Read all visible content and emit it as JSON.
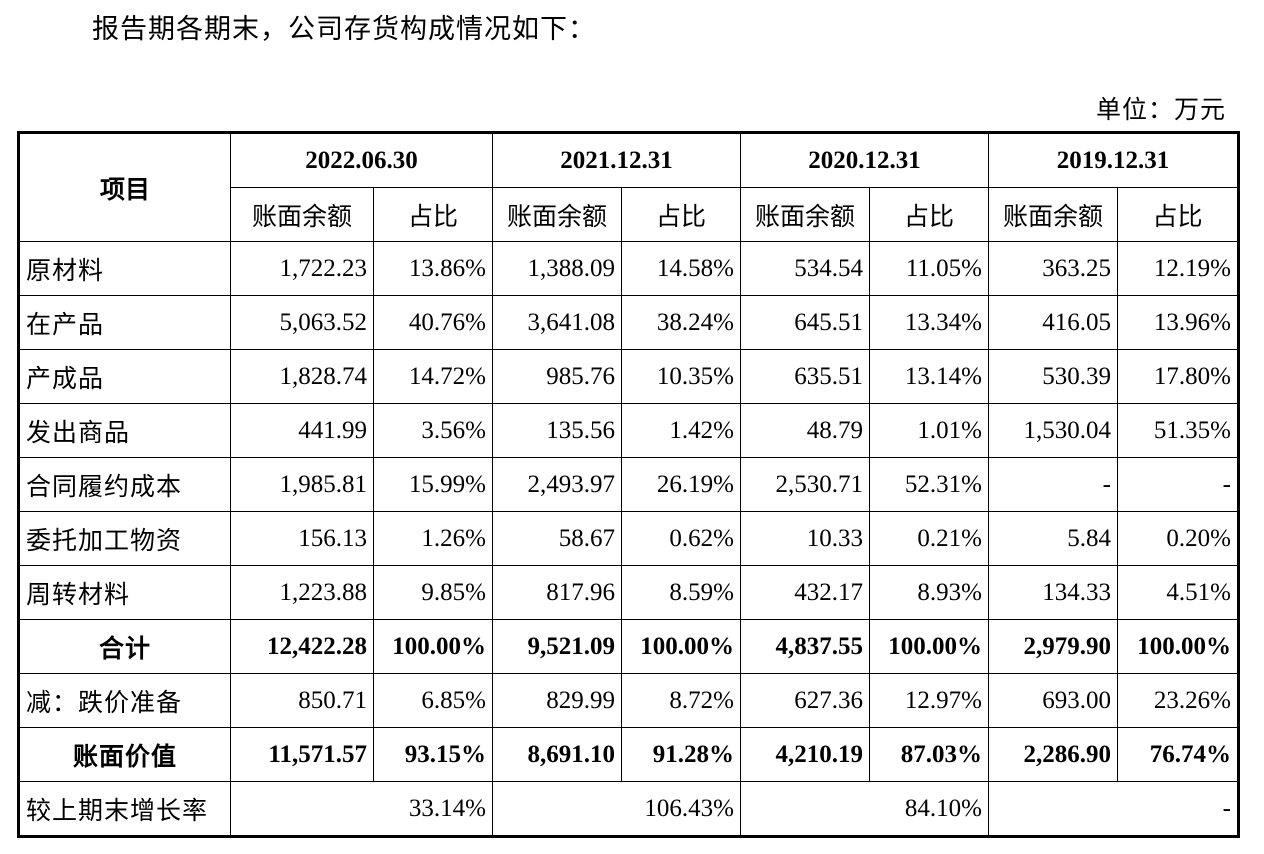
{
  "intro": "报告期各期末，公司存货构成情况如下：",
  "unit": "单位：万元",
  "table": {
    "item_header": "项目",
    "periods": [
      "2022.06.30",
      "2021.12.31",
      "2020.12.31",
      "2019.12.31"
    ],
    "sub_headers": {
      "amount": "账面余额",
      "ratio": "占比"
    },
    "rows": [
      {
        "label": "原材料",
        "values": [
          "1,722.23",
          "13.86%",
          "1,388.09",
          "14.58%",
          "534.54",
          "11.05%",
          "363.25",
          "12.19%"
        ]
      },
      {
        "label": "在产品",
        "values": [
          "5,063.52",
          "40.76%",
          "3,641.08",
          "38.24%",
          "645.51",
          "13.34%",
          "416.05",
          "13.96%"
        ]
      },
      {
        "label": "产成品",
        "values": [
          "1,828.74",
          "14.72%",
          "985.76",
          "10.35%",
          "635.51",
          "13.14%",
          "530.39",
          "17.80%"
        ]
      },
      {
        "label": "发出商品",
        "values": [
          "441.99",
          "3.56%",
          "135.56",
          "1.42%",
          "48.79",
          "1.01%",
          "1,530.04",
          "51.35%"
        ]
      },
      {
        "label": "合同履约成本",
        "values": [
          "1,985.81",
          "15.99%",
          "2,493.97",
          "26.19%",
          "2,530.71",
          "52.31%",
          "-",
          "-"
        ]
      },
      {
        "label": "委托加工物资",
        "values": [
          "156.13",
          "1.26%",
          "58.67",
          "0.62%",
          "10.33",
          "0.21%",
          "5.84",
          "0.20%"
        ]
      },
      {
        "label": "周转材料",
        "values": [
          "1,223.88",
          "9.85%",
          "817.96",
          "8.59%",
          "432.17",
          "8.93%",
          "134.33",
          "4.51%"
        ]
      }
    ],
    "total": {
      "label": "合计",
      "values": [
        "12,422.28",
        "100.00%",
        "9,521.09",
        "100.00%",
        "4,837.55",
        "100.00%",
        "2,979.90",
        "100.00%"
      ]
    },
    "impairment": {
      "label": "减：跌价准备",
      "values": [
        "850.71",
        "6.85%",
        "829.99",
        "8.72%",
        "627.36",
        "12.97%",
        "693.00",
        "23.26%"
      ]
    },
    "book_value": {
      "label": "账面价值",
      "values": [
        "11,571.57",
        "93.15%",
        "8,691.10",
        "91.28%",
        "4,210.19",
        "87.03%",
        "2,286.90",
        "76.74%"
      ]
    },
    "growth": {
      "label": "较上期末增长率",
      "values": [
        "33.14%",
        "106.43%",
        "84.10%",
        "-"
      ]
    }
  }
}
